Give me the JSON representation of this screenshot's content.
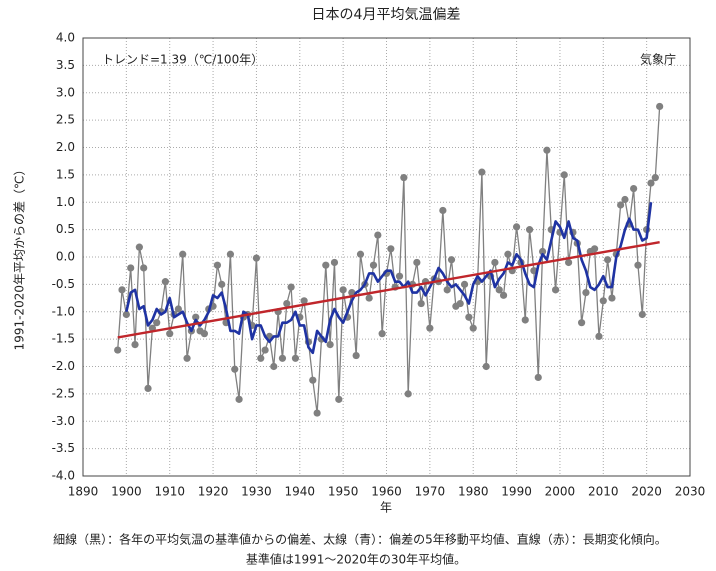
{
  "chart_data": {
    "type": "line",
    "title": "日本の4月平均気温偏差",
    "annotation": "トレンド=1.39（℃/100年）",
    "source": "気象庁",
    "ylabel": "1991-2020年平均からの差（℃）",
    "xlabel": "年",
    "footnote": [
      "細線（黒）：各年の平均気温の基準値からの偏差、太線（青）：偏差の5年移動平均値、直線（赤）：長期変化傾向。",
      "基準値は1991〜2020年の30年平均値。"
    ],
    "grid": true,
    "xlim": [
      1890,
      2030
    ],
    "ylim": [
      -4,
      4
    ],
    "xticks": [
      1890,
      1900,
      1910,
      1920,
      1930,
      1940,
      1950,
      1960,
      1970,
      1980,
      1990,
      2000,
      2010,
      2020,
      2030
    ],
    "yticks": [
      {
        "value": -4,
        "label": "-4.0"
      },
      {
        "value": -3.5,
        "label": "-3.5"
      },
      {
        "value": -3,
        "label": "-3.0"
      },
      {
        "value": -2.5,
        "label": "-2.5"
      },
      {
        "value": -2,
        "label": "-2.0"
      },
      {
        "value": -1.5,
        "label": "-1.5"
      },
      {
        "value": -1,
        "label": "-1.0"
      },
      {
        "value": -0.5,
        "label": "-0.5"
      },
      {
        "value": 0,
        "label": "0.0"
      },
      {
        "value": 0.5,
        "label": "0.5"
      },
      {
        "value": 1,
        "label": "1.0"
      },
      {
        "value": 1.5,
        "label": "1.5"
      },
      {
        "value": 2,
        "label": "2.0"
      },
      {
        "value": 2.5,
        "label": "2.5"
      },
      {
        "value": 3,
        "label": "3.0"
      },
      {
        "value": 3.5,
        "label": "3.5"
      },
      {
        "value": 4,
        "label": "4.0"
      }
    ],
    "x": [
      1898,
      1899,
      1900,
      1901,
      1902,
      1903,
      1904,
      1905,
      1906,
      1907,
      1908,
      1909,
      1910,
      1911,
      1912,
      1913,
      1914,
      1915,
      1916,
      1917,
      1918,
      1919,
      1920,
      1921,
      1922,
      1923,
      1924,
      1925,
      1926,
      1927,
      1928,
      1929,
      1930,
      1931,
      1932,
      1933,
      1934,
      1935,
      1936,
      1937,
      1938,
      1939,
      1940,
      1941,
      1942,
      1943,
      1944,
      1945,
      1946,
      1947,
      1948,
      1949,
      1950,
      1951,
      1952,
      1953,
      1954,
      1955,
      1956,
      1957,
      1958,
      1959,
      1960,
      1961,
      1962,
      1963,
      1964,
      1965,
      1966,
      1967,
      1968,
      1969,
      1970,
      1971,
      1972,
      1973,
      1974,
      1975,
      1976,
      1977,
      1978,
      1979,
      1980,
      1981,
      1982,
      1983,
      1984,
      1985,
      1986,
      1987,
      1988,
      1989,
      1990,
      1991,
      1992,
      1993,
      1994,
      1995,
      1996,
      1997,
      1998,
      1999,
      2000,
      2001,
      2002,
      2003,
      2004,
      2005,
      2006,
      2007,
      2008,
      2009,
      2010,
      2011,
      2012,
      2013,
      2014,
      2015,
      2016,
      2017,
      2018,
      2019,
      2020,
      2021,
      2022,
      2023
    ],
    "series": [
      {
        "color": "#808080",
        "markers": true,
        "values": [
          -1.7,
          -0.6,
          -1.05,
          -0.2,
          -1.6,
          0.18,
          -0.2,
          -2.4,
          -1.3,
          -1.2,
          -1.0,
          -0.45,
          -1.4,
          -1.05,
          -0.95,
          0.05,
          -1.85,
          -1.35,
          -1.1,
          -1.35,
          -1.4,
          -0.95,
          -0.9,
          -0.15,
          -0.5,
          -1.2,
          0.05,
          -2.05,
          -2.6,
          -1.1,
          -1.05,
          -1.25,
          -0.02,
          -1.85,
          -1.7,
          -1.45,
          -2.0,
          -1.0,
          -1.85,
          -0.85,
          -0.55,
          -1.85,
          -1.1,
          -0.8,
          -1.55,
          -2.25,
          -2.85,
          -1.5,
          -0.15,
          -1.6,
          -0.1,
          -2.6,
          -0.6,
          -1.1,
          -0.65,
          -1.8,
          0.05,
          -0.5,
          -0.75,
          -0.15,
          0.4,
          -1.4,
          -0.3,
          0.15,
          -0.55,
          -0.35,
          1.45,
          -2.5,
          -0.5,
          -0.1,
          -0.85,
          -0.45,
          -1.3,
          -0.4,
          -0.45,
          0.85,
          -0.6,
          -0.05,
          -0.9,
          -0.85,
          -0.5,
          -1.1,
          -1.3,
          -0.45,
          1.55,
          -2.0,
          -0.35,
          -0.1,
          -0.6,
          -0.7,
          0.05,
          -0.25,
          0.55,
          -0.1,
          -1.15,
          0.5,
          -0.25,
          -2.2,
          0.1,
          1.95,
          0.5,
          -0.6,
          0.45,
          1.5,
          -0.1,
          0.45,
          0.25,
          -1.2,
          -0.65,
          0.1,
          0.15,
          -1.45,
          -0.8,
          -0.05,
          -0.75,
          0.05,
          0.95,
          1.05,
          0.6,
          1.25,
          -0.15,
          -1.05,
          0.5,
          1.35,
          1.45,
          2.75
        ]
      },
      {
        "color": "#1f33a3",
        "markers": false,
        "values": [
          null,
          null,
          -1.0,
          -0.65,
          -0.6,
          -0.95,
          -0.9,
          -1.25,
          -1.15,
          -0.95,
          -1.05,
          -1.0,
          -0.75,
          -1.1,
          -1.05,
          -1.0,
          -1.2,
          -1.35,
          -1.15,
          -1.25,
          -1.15,
          -1.0,
          -0.7,
          -0.75,
          -0.65,
          -0.95,
          -1.35,
          -1.35,
          -1.4,
          -1.0,
          -1.05,
          -1.5,
          -1.25,
          -1.25,
          -1.45,
          -1.55,
          -1.45,
          -1.45,
          -1.2,
          -1.2,
          -1.15,
          -1.0,
          -1.25,
          -1.25,
          -1.65,
          -1.75,
          -1.35,
          -1.45,
          -1.55,
          -1.15,
          -0.95,
          -1.1,
          -1.2,
          -1.0,
          -0.8,
          -0.65,
          -0.6,
          -0.5,
          -0.3,
          -0.3,
          -0.45,
          -0.35,
          -0.25,
          -0.25,
          -0.45,
          -0.45,
          -0.55,
          -0.45,
          -0.65,
          -0.65,
          -0.55,
          -0.7,
          -0.55,
          -0.4,
          -0.2,
          -0.3,
          -0.45,
          -0.55,
          -0.5,
          -0.6,
          -0.7,
          -0.85,
          -0.5,
          -0.35,
          -0.45,
          -0.35,
          -0.25,
          -0.55,
          -0.4,
          -0.3,
          -0.1,
          -0.15,
          0.05,
          -0.05,
          -0.3,
          -0.5,
          -0.55,
          -0.15,
          0.05,
          -0.05,
          0.3,
          0.65,
          0.55,
          0.35,
          0.65,
          0.35,
          0.3,
          -0.05,
          -0.25,
          -0.55,
          -0.6,
          -0.5,
          -0.35,
          -0.55,
          -0.55,
          0.0,
          0.2,
          0.5,
          0.7,
          0.5,
          0.5,
          0.3,
          0.35,
          1.0,
          null,
          null
        ]
      }
    ],
    "trend": {
      "color": "#c0262b",
      "x": [
        1898,
        2023
      ],
      "values": [
        -1.47,
        0.27
      ]
    }
  }
}
